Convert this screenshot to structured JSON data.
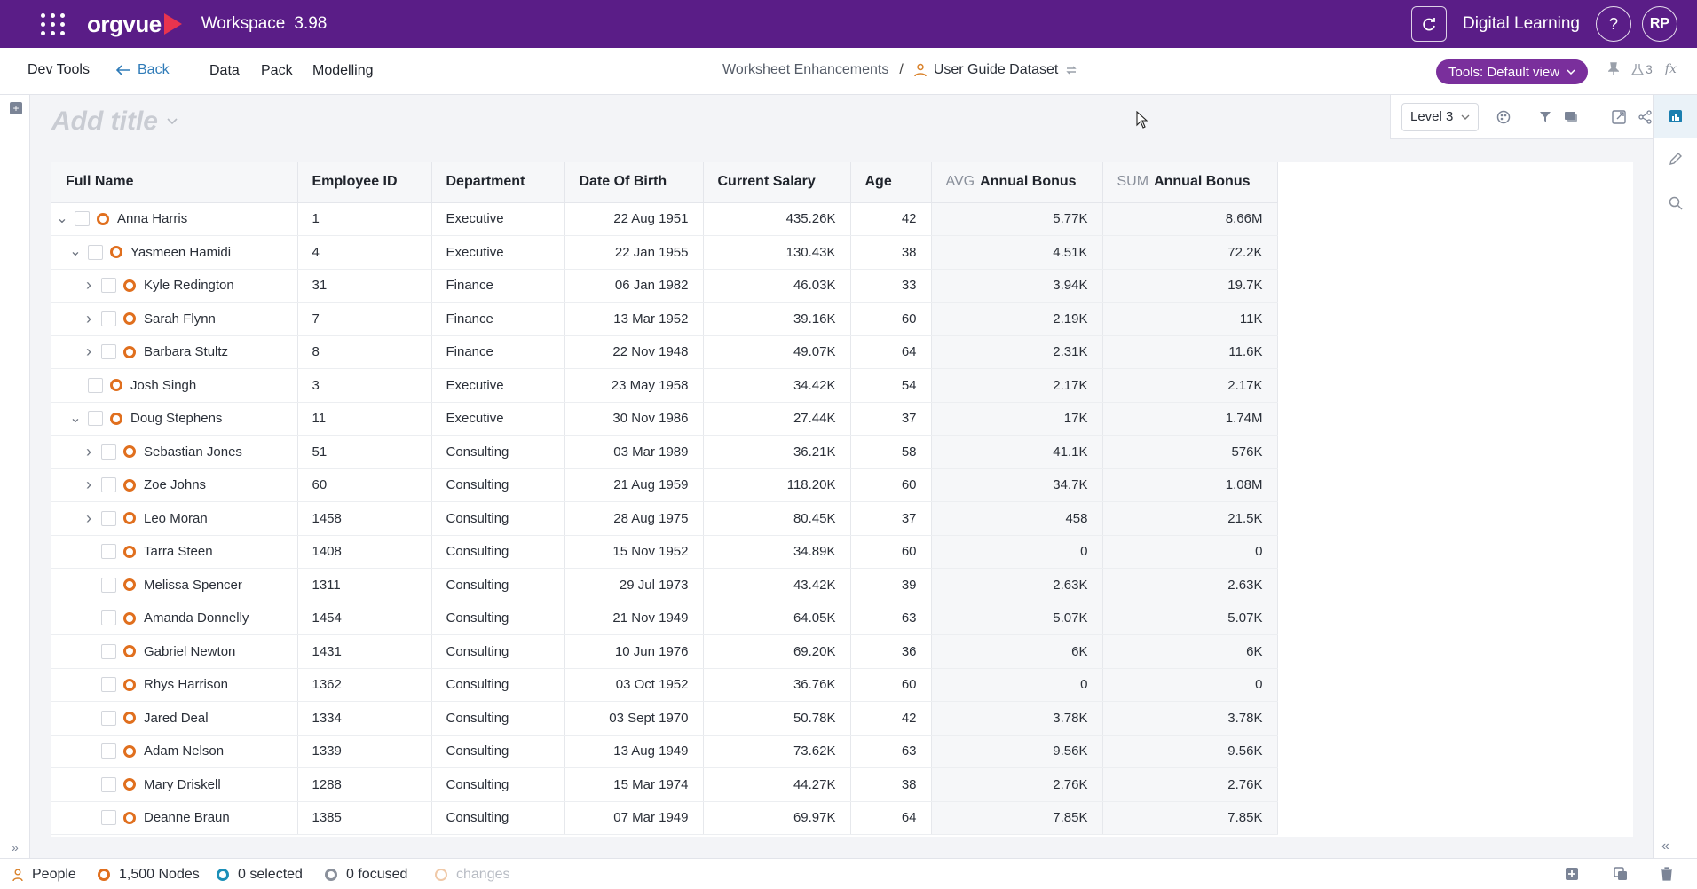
{
  "topbar": {
    "brand": "orgvue",
    "workspace_name": "Workspace",
    "workspace_version": "3.98",
    "tenant": "Digital Learning",
    "help_label": "?",
    "avatar": "RP"
  },
  "nav": {
    "dev_tools": "Dev Tools",
    "back": "Back",
    "data": "Data",
    "pack": "Pack",
    "modelling": "Modelling",
    "crumb_1": "Worksheet Enhancements",
    "crumb_sep": "/",
    "crumb_2": "User Guide Dataset",
    "tools_button": "Tools: Default view",
    "history_count": "3",
    "fx": "fx"
  },
  "view": {
    "title_placeholder": "Add title",
    "level": "Level 3"
  },
  "table": {
    "columns": [
      {
        "label": "Full Name"
      },
      {
        "label": "Employee ID"
      },
      {
        "label": "Department"
      },
      {
        "label": "Date Of Birth"
      },
      {
        "label": "Current Salary"
      },
      {
        "label": "Age"
      },
      {
        "agg": "AVG",
        "label": "Annual Bonus"
      },
      {
        "agg": "SUM",
        "label": "Annual Bonus"
      }
    ],
    "rows": [
      {
        "name": "Anna Harris",
        "depth": 0,
        "exp": "open",
        "id": "1",
        "dept": "Executive",
        "dob": "22 Aug 1951",
        "salary": "435.26K",
        "age": "42",
        "avg": "5.77K",
        "sum": "8.66M"
      },
      {
        "name": "Yasmeen Hamidi",
        "depth": 1,
        "exp": "open",
        "id": "4",
        "dept": "Executive",
        "dob": "22 Jan 1955",
        "salary": "130.43K",
        "age": "38",
        "avg": "4.51K",
        "sum": "72.2K"
      },
      {
        "name": "Kyle Redington",
        "depth": 2,
        "exp": "closed",
        "id": "31",
        "dept": "Finance",
        "dob": "06 Jan 1982",
        "salary": "46.03K",
        "age": "33",
        "avg": "3.94K",
        "sum": "19.7K"
      },
      {
        "name": "Sarah Flynn",
        "depth": 2,
        "exp": "closed",
        "id": "7",
        "dept": "Finance",
        "dob": "13 Mar 1952",
        "salary": "39.16K",
        "age": "60",
        "avg": "2.19K",
        "sum": "11K"
      },
      {
        "name": "Barbara Stultz",
        "depth": 2,
        "exp": "closed",
        "id": "8",
        "dept": "Finance",
        "dob": "22 Nov 1948",
        "salary": "49.07K",
        "age": "64",
        "avg": "2.31K",
        "sum": "11.6K"
      },
      {
        "name": "Josh Singh",
        "depth": 1,
        "exp": "none",
        "id": "3",
        "dept": "Executive",
        "dob": "23 May 1958",
        "salary": "34.42K",
        "age": "54",
        "avg": "2.17K",
        "sum": "2.17K"
      },
      {
        "name": "Doug Stephens",
        "depth": 1,
        "exp": "open",
        "id": "11",
        "dept": "Executive",
        "dob": "30 Nov 1986",
        "salary": "27.44K",
        "age": "37",
        "avg": "17K",
        "sum": "1.74M"
      },
      {
        "name": "Sebastian Jones",
        "depth": 2,
        "exp": "closed",
        "id": "51",
        "dept": "Consulting",
        "dob": "03 Mar 1989",
        "salary": "36.21K",
        "age": "58",
        "avg": "41.1K",
        "sum": "576K"
      },
      {
        "name": "Zoe Johns",
        "depth": 2,
        "exp": "closed",
        "id": "60",
        "dept": "Consulting",
        "dob": "21 Aug 1959",
        "salary": "118.20K",
        "age": "60",
        "avg": "34.7K",
        "sum": "1.08M"
      },
      {
        "name": "Leo Moran",
        "depth": 2,
        "exp": "closed",
        "id": "1458",
        "dept": "Consulting",
        "dob": "28 Aug 1975",
        "salary": "80.45K",
        "age": "37",
        "avg": "458",
        "sum": "21.5K"
      },
      {
        "name": "Tarra Steen",
        "depth": 2,
        "exp": "none",
        "id": "1408",
        "dept": "Consulting",
        "dob": "15 Nov 1952",
        "salary": "34.89K",
        "age": "60",
        "avg": "0",
        "sum": "0"
      },
      {
        "name": "Melissa Spencer",
        "depth": 2,
        "exp": "none",
        "id": "1311",
        "dept": "Consulting",
        "dob": "29 Jul 1973",
        "salary": "43.42K",
        "age": "39",
        "avg": "2.63K",
        "sum": "2.63K"
      },
      {
        "name": "Amanda Donnelly",
        "depth": 2,
        "exp": "none",
        "id": "1454",
        "dept": "Consulting",
        "dob": "21 Nov 1949",
        "salary": "64.05K",
        "age": "63",
        "avg": "5.07K",
        "sum": "5.07K"
      },
      {
        "name": "Gabriel Newton",
        "depth": 2,
        "exp": "none",
        "id": "1431",
        "dept": "Consulting",
        "dob": "10 Jun 1976",
        "salary": "69.20K",
        "age": "36",
        "avg": "6K",
        "sum": "6K"
      },
      {
        "name": "Rhys Harrison",
        "depth": 2,
        "exp": "none",
        "id": "1362",
        "dept": "Consulting",
        "dob": "03 Oct 1952",
        "salary": "36.76K",
        "age": "60",
        "avg": "0",
        "sum": "0"
      },
      {
        "name": "Jared Deal",
        "depth": 2,
        "exp": "none",
        "id": "1334",
        "dept": "Consulting",
        "dob": "03 Sept 1970",
        "salary": "50.78K",
        "age": "42",
        "avg": "3.78K",
        "sum": "3.78K"
      },
      {
        "name": "Adam Nelson",
        "depth": 2,
        "exp": "none",
        "id": "1339",
        "dept": "Consulting",
        "dob": "13 Aug 1949",
        "salary": "73.62K",
        "age": "63",
        "avg": "9.56K",
        "sum": "9.56K"
      },
      {
        "name": "Mary Driskell",
        "depth": 2,
        "exp": "none",
        "id": "1288",
        "dept": "Consulting",
        "dob": "15 Mar 1974",
        "salary": "44.27K",
        "age": "38",
        "avg": "2.76K",
        "sum": "2.76K"
      },
      {
        "name": "Deanne Braun",
        "depth": 2,
        "exp": "none",
        "id": "1385",
        "dept": "Consulting",
        "dob": "07 Mar 1949",
        "salary": "69.97K",
        "age": "64",
        "avg": "7.85K",
        "sum": "7.85K"
      }
    ]
  },
  "status": {
    "dataset": "People",
    "nodes": "1,500 Nodes",
    "selected": "0 selected",
    "focused": "0 focused",
    "changes": "changes"
  },
  "colors": {
    "brand_purple": "#5a1d87",
    "tools_button": "#7a2f9c",
    "node_orange": "#e06f1e",
    "link_blue": "#2f7bb8",
    "selected_teal": "#1b8fb8"
  }
}
